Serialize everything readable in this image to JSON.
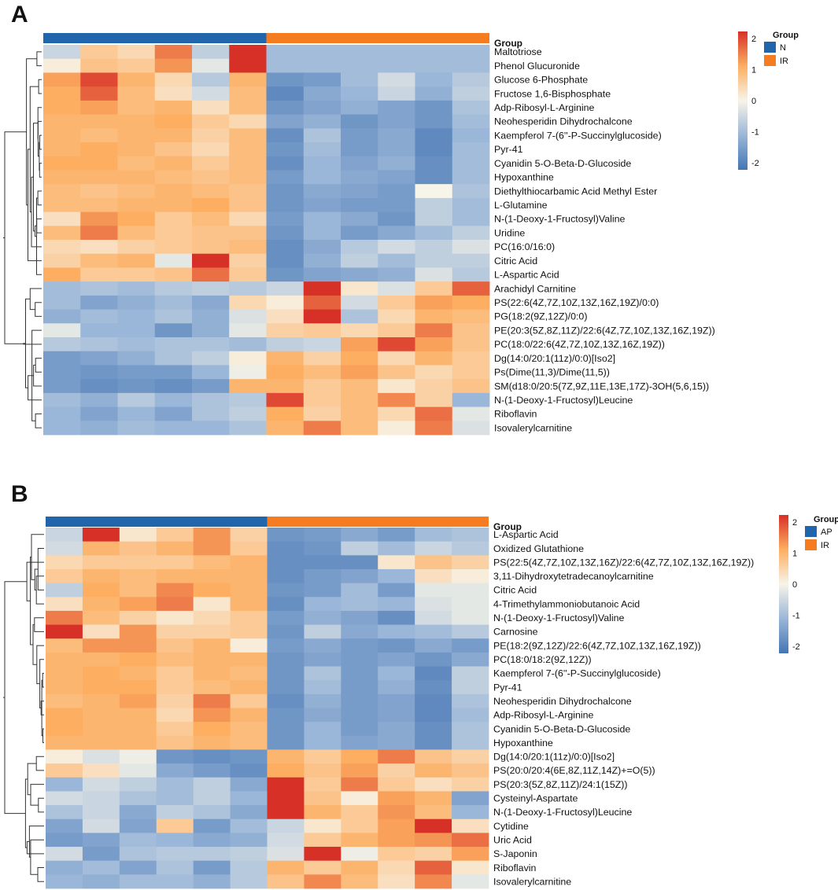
{
  "colors": {
    "low": "#4575b4",
    "mid": "#f7f4e8",
    "high": "#d73027",
    "groupBlue": "#2166ac",
    "groupOrange": "#f57c20"
  },
  "chart_data": [
    {
      "type": "heatmap",
      "panel": "A",
      "annotation_title": "Group",
      "groups": [
        {
          "name": "N",
          "color": "#2166ac",
          "count": 6
        },
        {
          "name": "IR",
          "color": "#f57c20",
          "count": 6
        }
      ],
      "scale": {
        "min": -2,
        "max": 2,
        "ticks": [
          2,
          1,
          0,
          -1,
          -2
        ]
      },
      "rows": [
        {
          "label": "Maltotriose",
          "values": [
            -0.5,
            0.6,
            0.4,
            1.4,
            -0.6,
            2.4,
            -0.9,
            -0.9,
            -0.9,
            -0.9,
            -0.9,
            -0.9
          ]
        },
        {
          "label": "Phenol Glucuronide",
          "values": [
            0.1,
            0.7,
            0.6,
            1.2,
            -0.2,
            2.1,
            -0.9,
            -0.9,
            -0.9,
            -0.9,
            -0.9,
            -0.9
          ]
        },
        {
          "label": "Glucose 6-Phosphate",
          "values": [
            1.1,
            1.8,
            0.9,
            0.4,
            -0.7,
            0.9,
            -1.5,
            -1.4,
            -0.9,
            -0.4,
            -1.0,
            -0.7
          ]
        },
        {
          "label": "Fructose 1,6-Bisphosphate",
          "values": [
            1.0,
            1.6,
            0.8,
            0.3,
            -0.4,
            0.8,
            -1.7,
            -1.2,
            -1.0,
            -0.5,
            -1.1,
            -0.6
          ]
        },
        {
          "label": "Adp-Ribosyl-L-Arginine",
          "values": [
            1.0,
            1.1,
            0.8,
            0.9,
            0.3,
            0.8,
            -1.5,
            -1.3,
            -1.1,
            -1.3,
            -1.5,
            -0.8
          ]
        },
        {
          "label": "Neohesperidin Dihydrochalcone",
          "values": [
            0.9,
            0.9,
            0.9,
            1.0,
            0.6,
            0.4,
            -1.3,
            -1.1,
            -1.5,
            -1.3,
            -1.5,
            -0.9
          ]
        },
        {
          "label": "Kaempferol 7-(6''-P-Succinylglucoside)",
          "values": [
            0.9,
            0.8,
            0.9,
            0.9,
            0.5,
            0.8,
            -1.6,
            -0.8,
            -1.4,
            -1.2,
            -1.7,
            -1.0
          ]
        },
        {
          "label": "Pyr-41",
          "values": [
            0.9,
            1.0,
            0.9,
            0.7,
            0.4,
            0.8,
            -1.5,
            -0.9,
            -1.4,
            -1.2,
            -1.7,
            -0.9
          ]
        },
        {
          "label": "Cyanidin 5-O-Beta-D-Glucoside",
          "values": [
            1.0,
            1.0,
            0.8,
            0.9,
            0.6,
            0.8,
            -1.6,
            -1.0,
            -1.3,
            -1.1,
            -1.6,
            -0.9
          ]
        },
        {
          "label": "Hypoxanthine",
          "values": [
            0.9,
            0.9,
            0.9,
            0.8,
            0.7,
            0.8,
            -1.4,
            -1.0,
            -1.2,
            -1.3,
            -1.6,
            -0.9
          ]
        },
        {
          "label": "Diethylthiocarbamic Acid Methyl Ester",
          "values": [
            0.8,
            0.7,
            0.8,
            0.9,
            0.8,
            0.7,
            -1.5,
            -1.2,
            -1.3,
            -1.4,
            0.0,
            -0.8
          ]
        },
        {
          "label": "L-Glutamine",
          "values": [
            0.8,
            0.8,
            0.9,
            0.9,
            1.0,
            0.7,
            -1.5,
            -1.3,
            -1.4,
            -1.4,
            -0.6,
            -0.9
          ]
        },
        {
          "label": "N-(1-Deoxy-1-Fructosyl)Valine",
          "values": [
            0.3,
            1.2,
            1.0,
            0.6,
            0.8,
            0.4,
            -1.4,
            -1.0,
            -1.2,
            -1.5,
            -0.6,
            -0.9
          ]
        },
        {
          "label": "Uridine",
          "values": [
            0.8,
            1.4,
            0.8,
            0.6,
            0.7,
            0.7,
            -1.5,
            -1.0,
            -1.4,
            -1.2,
            -0.9,
            -0.6
          ]
        },
        {
          "label": "PC(16:0/16:0)",
          "values": [
            0.4,
            0.3,
            0.5,
            0.6,
            0.7,
            0.8,
            -1.6,
            -1.2,
            -0.7,
            -0.4,
            -0.6,
            -0.3
          ]
        },
        {
          "label": "Citric Acid",
          "values": [
            0.5,
            0.8,
            0.9,
            -0.2,
            2.3,
            0.5,
            -1.6,
            -1.1,
            -0.6,
            -0.9,
            -0.6,
            -0.6
          ]
        },
        {
          "label": "L-Aspartic Acid",
          "values": [
            1.0,
            0.6,
            0.6,
            0.7,
            1.5,
            0.6,
            -1.5,
            -1.3,
            -1.2,
            -1.1,
            -0.3,
            -0.7
          ]
        },
        {
          "label": "Arachidyl Carnitine",
          "values": [
            -0.9,
            -0.8,
            -0.9,
            -0.7,
            -0.6,
            -0.7,
            -0.5,
            2.4,
            0.2,
            -0.3,
            0.6,
            1.6
          ]
        },
        {
          "label": "PS(22:6(4Z,7Z,10Z,13Z,16Z,19Z)/0:0)",
          "values": [
            -0.9,
            -1.3,
            -1.1,
            -0.9,
            -1.2,
            0.4,
            0.1,
            1.6,
            -0.4,
            0.6,
            1.1,
            1.0
          ]
        },
        {
          "label": "PG(18:2(9Z,12Z)/0:0)",
          "values": [
            -1.1,
            -0.9,
            -1.0,
            -0.8,
            -1.1,
            -0.3,
            0.3,
            2.1,
            -0.8,
            0.4,
            0.9,
            0.8
          ]
        },
        {
          "label": "PE(20:3(5Z,8Z,11Z)/22:6(4Z,7Z,10Z,13Z,16Z,19Z))",
          "values": [
            -0.2,
            -1.0,
            -1.0,
            -1.5,
            -1.1,
            -0.2,
            0.5,
            0.6,
            0.4,
            0.6,
            1.4,
            0.7
          ]
        },
        {
          "label": "PC(18:0/22:6(4Z,7Z,10Z,13Z,16Z,19Z))",
          "values": [
            -0.7,
            -0.8,
            -0.9,
            -0.8,
            -0.8,
            -0.9,
            -0.6,
            -0.5,
            1.1,
            1.8,
            1.1,
            0.7
          ]
        },
        {
          "label": "Dg(14:0/20:1(11z)/0:0)[Iso2]",
          "values": [
            -1.4,
            -1.3,
            -1.1,
            -0.8,
            -0.6,
            0.1,
            0.9,
            0.5,
            1.0,
            0.4,
            0.9,
            0.6
          ]
        },
        {
          "label": "Ps(Dime(11,3)/Dime(11,5))",
          "values": [
            -1.4,
            -1.5,
            -1.4,
            -1.4,
            -1.0,
            -0.1,
            1.0,
            0.8,
            1.1,
            0.7,
            0.4,
            0.6
          ]
        },
        {
          "label": "SM(d18:0/20:5(7Z,9Z,11E,13E,17Z)-3OH(5,6,15))",
          "values": [
            -1.4,
            -1.6,
            -1.5,
            -1.6,
            -1.4,
            0.9,
            0.9,
            0.6,
            0.8,
            0.2,
            0.5,
            0.7
          ]
        },
        {
          "label": "N-(1-Deoxy-1-Fructosyl)Leucine",
          "values": [
            -0.9,
            -1.1,
            -0.7,
            -1.0,
            -0.8,
            -0.7,
            1.8,
            0.6,
            0.8,
            1.3,
            0.5,
            -1.0
          ]
        },
        {
          "label": "Riboflavin",
          "values": [
            -1.0,
            -1.3,
            -1.0,
            -1.3,
            -0.8,
            -0.6,
            1.0,
            0.5,
            0.8,
            0.4,
            1.5,
            -0.2
          ]
        },
        {
          "label": "Isovalerylcarnitine",
          "values": [
            -1.0,
            -1.1,
            -0.9,
            -1.0,
            -1.0,
            -0.8,
            0.9,
            1.4,
            0.8,
            0.1,
            1.4,
            -0.3
          ]
        }
      ]
    },
    {
      "type": "heatmap",
      "panel": "B",
      "annotation_title": "Group",
      "groups": [
        {
          "name": "AP",
          "color": "#2166ac",
          "count": 6
        },
        {
          "name": "IR",
          "color": "#f57c20",
          "count": 6
        }
      ],
      "scale": {
        "min": -2,
        "max": 2,
        "ticks": [
          2,
          1,
          0,
          -1,
          -2
        ]
      },
      "rows": [
        {
          "label": "L-Aspartic Acid",
          "values": [
            -0.5,
            2.2,
            0.2,
            0.6,
            1.2,
            0.5,
            -1.5,
            -1.4,
            -1.2,
            -1.4,
            -0.9,
            -0.8
          ]
        },
        {
          "label": "Oxidized Glutathione",
          "values": [
            -0.4,
            0.9,
            0.7,
            0.9,
            1.2,
            0.6,
            -1.6,
            -1.5,
            -0.6,
            -0.9,
            -0.5,
            -0.7
          ]
        },
        {
          "label": "PS(22:5(4Z,7Z,10Z,13Z,16Z)/22:6(4Z,7Z,10Z,13Z,16Z,19Z))",
          "values": [
            0.4,
            0.6,
            0.6,
            0.6,
            0.8,
            0.9,
            -1.6,
            -1.6,
            -1.6,
            0.2,
            0.7,
            0.5
          ]
        },
        {
          "label": "3,11-Dihydroxytetradecanoylcarnitine",
          "values": [
            0.6,
            0.9,
            0.8,
            0.9,
            0.9,
            0.9,
            -1.6,
            -1.4,
            -1.3,
            -1.0,
            0.3,
            0.1
          ]
        },
        {
          "label": "Citric Acid",
          "values": [
            -0.6,
            1.0,
            0.8,
            1.3,
            1.0,
            0.9,
            -1.5,
            -1.4,
            -0.9,
            -1.4,
            -0.2,
            -0.2
          ]
        },
        {
          "label": "4-Trimethylammoniobutanoic Acid",
          "values": [
            0.3,
            0.9,
            1.1,
            1.4,
            0.2,
            0.9,
            -1.6,
            -1.0,
            -0.9,
            -1.0,
            -0.3,
            -0.2
          ]
        },
        {
          "label": "N-(1-Deoxy-1-Fructosyl)Valine",
          "values": [
            1.4,
            0.8,
            0.5,
            0.2,
            0.4,
            0.6,
            -1.4,
            -1.1,
            -1.3,
            -1.6,
            -0.4,
            -0.2
          ]
        },
        {
          "label": "Carnosine",
          "values": [
            2.2,
            0.3,
            1.2,
            0.5,
            0.5,
            0.6,
            -1.5,
            -0.6,
            -1.2,
            -1.0,
            -0.9,
            -0.7
          ]
        },
        {
          "label": "PE(18:2(9Z,12Z)/22:6(4Z,7Z,10Z,13Z,16Z,19Z))",
          "values": [
            0.8,
            1.2,
            1.2,
            0.7,
            0.9,
            0.1,
            -1.4,
            -1.2,
            -1.4,
            -1.5,
            -1.2,
            -1.4
          ]
        },
        {
          "label": "PC(18:0/18:2(9Z,12Z))",
          "values": [
            0.9,
            0.9,
            1.0,
            0.8,
            0.9,
            0.9,
            -1.5,
            -1.3,
            -1.4,
            -1.3,
            -1.5,
            -1.2
          ]
        },
        {
          "label": "Kaempferol 7-(6''-P-Succinylglucoside)",
          "values": [
            0.9,
            1.0,
            0.9,
            0.6,
            0.9,
            0.8,
            -1.5,
            -0.8,
            -1.4,
            -1.0,
            -1.7,
            -0.6
          ]
        },
        {
          "label": "Pyr-41",
          "values": [
            0.9,
            1.0,
            1.0,
            0.6,
            0.8,
            0.9,
            -1.5,
            -0.9,
            -1.4,
            -1.1,
            -1.6,
            -0.6
          ]
        },
        {
          "label": "Neohesperidin Dihydrochalcone",
          "values": [
            0.8,
            0.9,
            1.1,
            0.5,
            1.4,
            0.6,
            -1.6,
            -1.1,
            -1.4,
            -1.3,
            -1.7,
            -0.8
          ]
        },
        {
          "label": "Adp-Ribosyl-L-Arginine",
          "values": [
            1.0,
            0.9,
            0.9,
            0.4,
            1.2,
            0.9,
            -1.5,
            -1.2,
            -1.4,
            -1.3,
            -1.7,
            -0.9
          ]
        },
        {
          "label": "Cyanidin 5-O-Beta-D-Glucoside",
          "values": [
            1.0,
            0.9,
            0.9,
            0.6,
            1.0,
            0.8,
            -1.5,
            -1.0,
            -1.4,
            -1.2,
            -1.6,
            -0.8
          ]
        },
        {
          "label": "Hypoxanthine",
          "values": [
            0.9,
            0.9,
            0.9,
            0.7,
            0.9,
            0.8,
            -1.5,
            -1.0,
            -1.3,
            -1.2,
            -1.6,
            -0.8
          ]
        },
        {
          "label": "Dg(14:0/20:1(11z)/0:0)[Iso2]",
          "values": [
            0.1,
            -0.3,
            -0.1,
            -1.5,
            -1.6,
            -1.5,
            0.9,
            0.6,
            1.0,
            1.4,
            0.7,
            0.5
          ]
        },
        {
          "label": "PS(20:0/20:4(6E,8Z,11Z,14Z)+=O(5))",
          "values": [
            0.6,
            0.3,
            -0.2,
            -1.2,
            -1.4,
            -1.6,
            1.0,
            0.7,
            1.1,
            0.5,
            0.9,
            0.7
          ]
        },
        {
          "label": "PS(20:3(5Z,8Z,11Z)/24:1(15Z))",
          "values": [
            -1.0,
            -0.4,
            -0.6,
            -0.9,
            -0.6,
            -1.2,
            2.2,
            0.6,
            1.4,
            0.6,
            0.3,
            0.5
          ]
        },
        {
          "label": "Cysteinyl-Aspartate",
          "values": [
            -0.4,
            -0.5,
            -0.8,
            -0.9,
            -0.6,
            -1.0,
            2.1,
            0.7,
            0.1,
            1.1,
            0.9,
            -1.3
          ]
        },
        {
          "label": "N-(1-Deoxy-1-Fructosyl)Leucine",
          "values": [
            -0.8,
            -0.5,
            -1.2,
            -0.6,
            -0.8,
            -1.2,
            2.0,
            0.9,
            0.6,
            1.2,
            0.8,
            -1.0
          ]
        },
        {
          "label": "Cytidine",
          "values": [
            -1.3,
            -0.4,
            -1.3,
            0.6,
            -1.4,
            -0.9,
            -0.5,
            0.2,
            0.6,
            1.1,
            2.0,
            0.3
          ]
        },
        {
          "label": "Uric Acid",
          "values": [
            -1.4,
            -1.3,
            -0.9,
            -1.0,
            -1.2,
            -1.1,
            -0.4,
            0.6,
            0.9,
            1.1,
            1.2,
            1.5
          ]
        },
        {
          "label": "S-Japonin",
          "values": [
            -0.4,
            -1.4,
            -0.8,
            -0.7,
            -0.7,
            -0.6,
            -0.3,
            2.3,
            -0.1,
            0.6,
            0.5,
            1.1
          ]
        },
        {
          "label": "Riboflavin",
          "values": [
            -1.1,
            -0.9,
            -1.3,
            -0.8,
            -1.4,
            -0.7,
            0.9,
            0.6,
            0.9,
            0.4,
            1.6,
            0.2
          ]
        },
        {
          "label": "Isovalerylcarnitine",
          "values": [
            -1.0,
            -1.1,
            -0.9,
            -0.9,
            -1.1,
            -0.7,
            0.7,
            1.3,
            0.8,
            0.3,
            1.3,
            -0.2
          ]
        }
      ]
    }
  ]
}
